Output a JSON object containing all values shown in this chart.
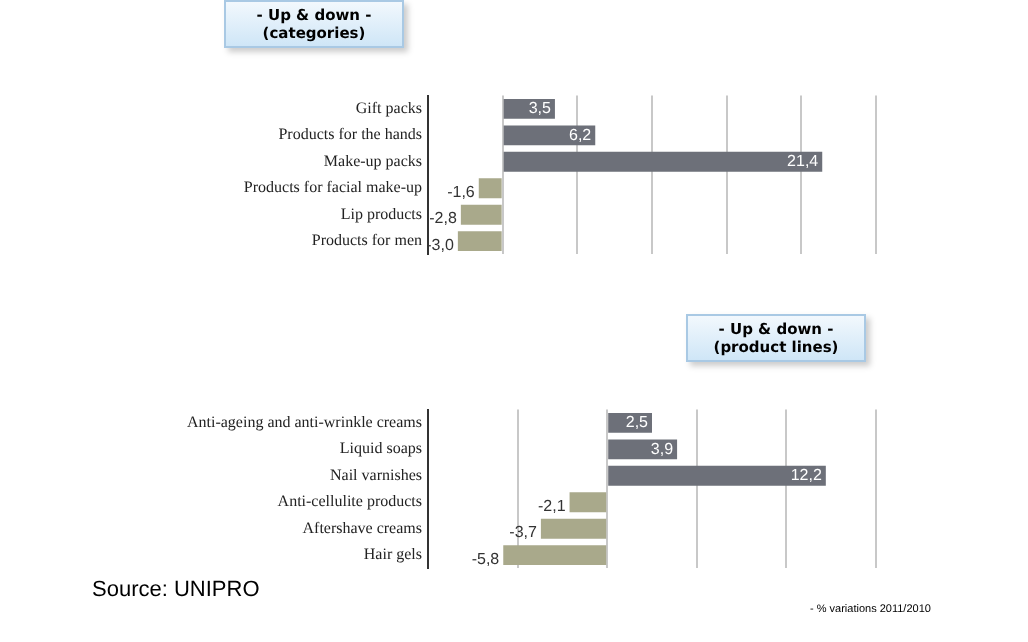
{
  "chart_data": [
    {
      "type": "bar",
      "orientation": "horizontal",
      "title": "- Up & down -",
      "subtitle": "(categories)",
      "categories": [
        "Gift packs",
        "Products for the hands",
        "Make-up packs",
        "Products for facial make-up",
        "Lip products",
        "Products for men"
      ],
      "values": [
        3.5,
        6.2,
        21.4,
        -1.6,
        -2.8,
        -3.0
      ],
      "value_labels": [
        "3,5",
        "6,2",
        "21,4",
        "-1,6",
        "-2,8",
        "-3,0"
      ],
      "colors": [
        "#6d7079",
        "#6d7079",
        "#6d7079",
        "#a9a98b",
        "#a9a98b",
        "#a9a98b"
      ],
      "grid": "x",
      "tick_labels": "y"
    },
    {
      "type": "bar",
      "orientation": "horizontal",
      "title": "- Up & down -",
      "subtitle": "(product lines)",
      "categories": [
        "Anti-ageing and anti-wrinkle creams",
        "Liquid soaps",
        "Nail varnishes",
        "Anti-cellulite products",
        "Aftershave creams",
        "Hair gels"
      ],
      "values": [
        2.5,
        3.9,
        12.2,
        -2.1,
        -3.7,
        -5.8
      ],
      "value_labels": [
        "2,5",
        "3,9",
        "12,2",
        "-2,1",
        "-3,7",
        "-5,8"
      ],
      "colors": [
        "#6d7079",
        "#6d7079",
        "#6d7079",
        "#a9a98b",
        "#a9a98b",
        "#a9a98b"
      ],
      "grid": "x",
      "tick_labels": "y",
      "annotations": [
        "Source: UNIPRO",
        "- % variations 2011/2010"
      ]
    }
  ]
}
